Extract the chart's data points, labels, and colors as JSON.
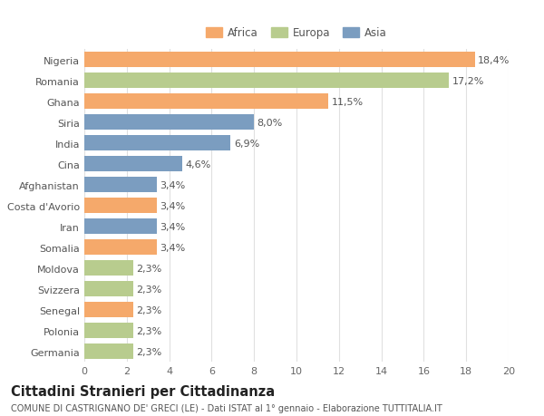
{
  "categories": [
    "Nigeria",
    "Romania",
    "Ghana",
    "Siria",
    "India",
    "Cina",
    "Afghanistan",
    "Costa d'Avorio",
    "Iran",
    "Somalia",
    "Moldova",
    "Svizzera",
    "Senegal",
    "Polonia",
    "Germania"
  ],
  "values": [
    18.4,
    17.2,
    11.5,
    8.0,
    6.9,
    4.6,
    3.4,
    3.4,
    3.4,
    3.4,
    2.3,
    2.3,
    2.3,
    2.3,
    2.3
  ],
  "labels": [
    "18,4%",
    "17,2%",
    "11,5%",
    "8,0%",
    "6,9%",
    "4,6%",
    "3,4%",
    "3,4%",
    "3,4%",
    "3,4%",
    "2,3%",
    "2,3%",
    "2,3%",
    "2,3%",
    "2,3%"
  ],
  "continents": [
    "Africa",
    "Europa",
    "Africa",
    "Asia",
    "Asia",
    "Asia",
    "Asia",
    "Africa",
    "Asia",
    "Africa",
    "Europa",
    "Europa",
    "Africa",
    "Europa",
    "Europa"
  ],
  "colors": {
    "Africa": "#F5A96B",
    "Europa": "#B8CC8E",
    "Asia": "#7B9DC0"
  },
  "xlim": [
    0,
    20
  ],
  "xticks": [
    0,
    2,
    4,
    6,
    8,
    10,
    12,
    14,
    16,
    18,
    20
  ],
  "title": "Cittadini Stranieri per Cittadinanza",
  "subtitle": "COMUNE DI CASTRIGNANO DE' GRECI (LE) - Dati ISTAT al 1° gennaio - Elaborazione TUTTITALIA.IT",
  "background_color": "#ffffff",
  "grid_color": "#e0e0e0",
  "bar_height": 0.72,
  "label_fontsize": 8.0,
  "ytick_fontsize": 8.0,
  "xtick_fontsize": 8.0,
  "title_fontsize": 10.5,
  "subtitle_fontsize": 7.0,
  "legend_fontsize": 8.5
}
